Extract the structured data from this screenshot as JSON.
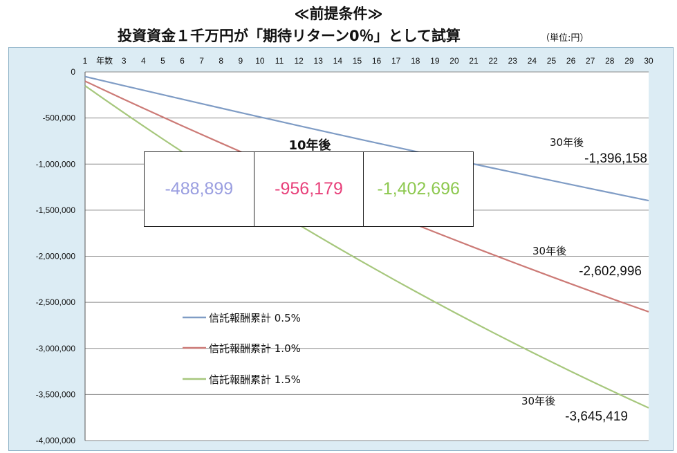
{
  "header": {
    "title": "≪前提条件≫",
    "subtitle": "投資資金１千万円が「期待リターン0％」として試算",
    "unit": "（単位:円）"
  },
  "colors": {
    "series_0_5": "#7f9cc5",
    "series_1_0": "#cc7a76",
    "series_1_5": "#a6c77c",
    "cell_0_5_text": "#9a9ee0",
    "cell_1_0_text": "#e8407a",
    "cell_1_5_text": "#8dc84f",
    "plot_bg": "#ffffff",
    "frame_bg": "#dcecf4",
    "grid": "#8a8a8a"
  },
  "summary_box": {
    "title": "10年後",
    "cells": [
      "-488,899",
      "-956,179",
      "-1,402,696"
    ]
  },
  "chart_data": {
    "type": "line",
    "x_categories": [
      "1",
      "年数",
      "3",
      "4",
      "5",
      "6",
      "7",
      "8",
      "9",
      "10",
      "11",
      "12",
      "13",
      "14",
      "15",
      "16",
      "17",
      "18",
      "19",
      "20",
      "21",
      "22",
      "23",
      "24",
      "25",
      "26",
      "27",
      "28",
      "29",
      "30"
    ],
    "x": [
      1,
      2,
      3,
      4,
      5,
      6,
      7,
      8,
      9,
      10,
      11,
      12,
      13,
      14,
      15,
      16,
      17,
      18,
      19,
      20,
      21,
      22,
      23,
      24,
      25,
      26,
      27,
      28,
      29,
      30
    ],
    "ylim": [
      -4000000,
      0
    ],
    "y_ticks": [
      0,
      -500000,
      -1000000,
      -1500000,
      -2000000,
      -2500000,
      -3000000,
      -3500000,
      -4000000
    ],
    "y_tick_labels": [
      "0",
      "-500,000",
      "-1,000,000",
      "-1,500,000",
      "-2,000,000",
      "-2,500,000",
      "-3,000,000",
      "-3,500,000",
      "-4,000,000"
    ],
    "x_axis_position": "top",
    "grid": "horizontal",
    "legend_position": "left-lower",
    "series": [
      {
        "name": "信託報酬累計 0.5%",
        "rate": 0.005,
        "color_key": "series_0_5",
        "end_value": -1396158
      },
      {
        "name": "信託報酬累計 1.0%",
        "rate": 0.01,
        "color_key": "series_1_0",
        "end_value": -2602996
      },
      {
        "name": "信託報酬累計 1.5%",
        "rate": 0.015,
        "color_key": "series_1_5",
        "end_value": -3645419
      }
    ],
    "annotations": [
      {
        "label": "30年後",
        "value": "-1,396,158"
      },
      {
        "label": "30年後",
        "value": "-2,602,996"
      },
      {
        "label": "30年後",
        "value": "-3,645,419"
      }
    ]
  }
}
